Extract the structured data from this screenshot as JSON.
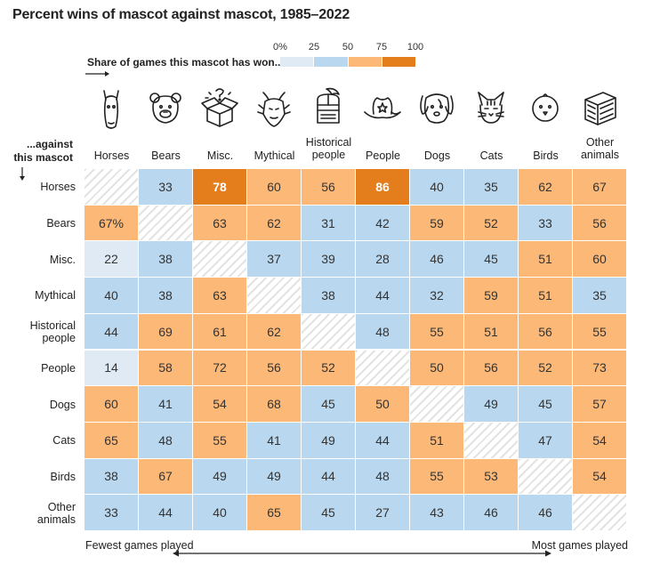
{
  "title": "Percent wins of mascot against mascot, 1985–2022",
  "legend": {
    "label": "Share of games this mascot has won...",
    "ticks": [
      "0%",
      "25",
      "50",
      "75",
      "100"
    ],
    "colors": [
      "#dfeaf5",
      "#b9d7ee",
      "#fcb877",
      "#e47d1c"
    ]
  },
  "row_axis_label": "...against this mascot",
  "footer": {
    "left": "Fewest games played",
    "right": "Most games played"
  },
  "chart_data": {
    "type": "heatmap",
    "title": "Percent wins of mascot against mascot, 1985–2022",
    "columns": [
      "Horses",
      "Bears",
      "Misc.",
      "Mythical",
      "Historical people",
      "People",
      "Dogs",
      "Cats",
      "Birds",
      "Other animals"
    ],
    "rows": [
      "Horses",
      "Bears",
      "Misc.",
      "Mythical",
      "Historical people",
      "People",
      "Dogs",
      "Cats",
      "Birds",
      "Other animals"
    ],
    "values": [
      [
        null,
        33,
        78,
        60,
        56,
        86,
        40,
        35,
        62,
        67
      ],
      [
        67,
        null,
        63,
        62,
        31,
        42,
        59,
        52,
        33,
        56
      ],
      [
        22,
        38,
        null,
        37,
        39,
        28,
        46,
        45,
        51,
        60
      ],
      [
        40,
        38,
        63,
        null,
        38,
        44,
        32,
        59,
        51,
        35
      ],
      [
        44,
        69,
        61,
        62,
        null,
        48,
        55,
        51,
        56,
        55
      ],
      [
        14,
        58,
        72,
        56,
        52,
        null,
        50,
        56,
        52,
        73
      ],
      [
        60,
        41,
        54,
        68,
        45,
        50,
        null,
        49,
        45,
        57
      ],
      [
        65,
        48,
        55,
        41,
        49,
        44,
        51,
        null,
        47,
        54
      ],
      [
        38,
        67,
        49,
        49,
        44,
        48,
        55,
        53,
        null,
        54
      ],
      [
        33,
        44,
        40,
        65,
        45,
        27,
        43,
        46,
        46,
        null
      ]
    ],
    "first_value_suffix": "%",
    "color_scale": {
      "breaks": [
        0,
        25,
        50,
        75,
        100
      ],
      "colors": [
        "#dfeaf5",
        "#b9d7ee",
        "#fcb877",
        "#e47d1c"
      ]
    },
    "icons": [
      "horse-icon",
      "bear-icon",
      "box-icon",
      "dragon-icon",
      "knight-icon",
      "hat-icon",
      "dog-icon",
      "cat-icon",
      "bird-icon",
      "crate-icon"
    ],
    "footer_arrow": "both",
    "legend_placement": "top"
  }
}
